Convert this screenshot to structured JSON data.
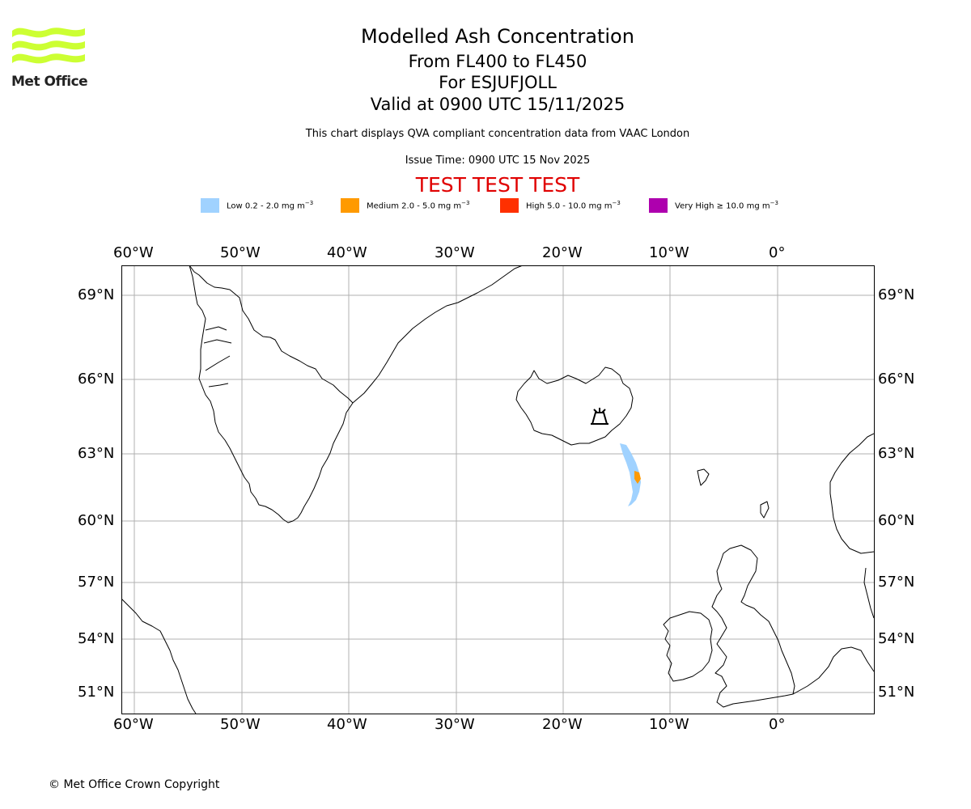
{
  "logo": {
    "text": "Met Office",
    "brand_color": "#ccff33"
  },
  "header": {
    "title": "Modelled Ash Concentration",
    "flight_levels": "From FL400 to FL450",
    "volcano": "For ESJUFJOLL",
    "valid_time": "Valid at 0900 UTC 15/11/2025",
    "description": "This chart displays QVA compliant concentration data from VAAC London",
    "issue_time": "Issue Time: 0900 UTC 15 Nov 2025",
    "test_banner": "TEST TEST TEST"
  },
  "legend": {
    "items": [
      {
        "label_prefix": "Low 0.2 - 2.0 mg m",
        "exponent": "−3",
        "color": "#a0d2ff"
      },
      {
        "label_prefix": "Medium 2.0 - 5.0 mg m",
        "exponent": "−3",
        "color": "#ff9a00"
      },
      {
        "label_prefix": "High 5.0 - 10.0 mg m",
        "exponent": "−3",
        "color": "#ff3000"
      },
      {
        "label_prefix": "Very High  ≥  10.0 mg m",
        "exponent": "−3",
        "color": "#ae00ae"
      }
    ]
  },
  "map": {
    "lon_ticks": [
      "60°W",
      "50°W",
      "40°W",
      "30°W",
      "20°W",
      "10°W",
      "0°"
    ],
    "lat_ticks": [
      "69°N",
      "66°N",
      "63°N",
      "60°N",
      "57°N",
      "54°N",
      "51°N"
    ],
    "gridline_color": "#b0b0b0",
    "volcano_symbol": "volcano-icon",
    "ash_low_color": "#a0d2ff",
    "ash_medium_color": "#ff9a00"
  },
  "footer": {
    "copyright": "© Met Office Crown Copyright"
  }
}
